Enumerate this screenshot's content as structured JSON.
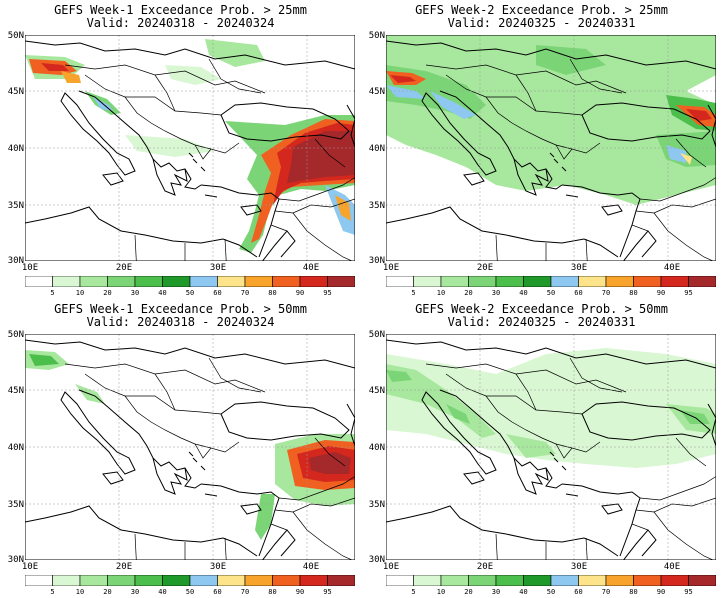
{
  "legend": {
    "levels": [
      "5",
      "10",
      "20",
      "30",
      "40",
      "50",
      "60",
      "70",
      "80",
      "90",
      "95"
    ],
    "colors": [
      "#ffffff",
      "#d9f7d2",
      "#a8e79e",
      "#7bd577",
      "#4cbe4c",
      "#1f9a2a",
      "#8ec7ef",
      "#fde38a",
      "#f7a32c",
      "#f06020",
      "#d4271e",
      "#a5282b"
    ]
  },
  "panels": [
    {
      "title": "GEFS Week-1 Exceedance Prob. > 25mm",
      "valid": "Valid: 20240318 - 20240324",
      "lat_labels": [
        "50N",
        "45N",
        "40N",
        "35N",
        "30N"
      ],
      "lon_labels": [
        "10E",
        "20E",
        "30E",
        "40E"
      ]
    },
    {
      "title": "GEFS Week-2 Exceedance Prob. > 25mm",
      "valid": "Valid: 20240325 - 20240331",
      "lat_labels": [
        "50N",
        "45N",
        "40N",
        "35N",
        "30N"
      ],
      "lon_labels": [
        "10E",
        "20E",
        "30E",
        "40E"
      ]
    },
    {
      "title": "GEFS Week-1 Exceedance Prob. > 50mm",
      "valid": "Valid: 20240318 - 20240324",
      "lat_labels": [
        "50N",
        "45N",
        "40N",
        "35N",
        "30N"
      ],
      "lon_labels": [
        "10E",
        "20E",
        "30E",
        "40E"
      ]
    },
    {
      "title": "GEFS Week-2 Exceedance Prob. > 50mm",
      "valid": "Valid: 20240325 - 20240331",
      "lat_labels": [
        "50N",
        "45N",
        "40N",
        "35N",
        "30N"
      ],
      "lon_labels": [
        "10E",
        "20E",
        "30E",
        "40E"
      ]
    }
  ]
}
